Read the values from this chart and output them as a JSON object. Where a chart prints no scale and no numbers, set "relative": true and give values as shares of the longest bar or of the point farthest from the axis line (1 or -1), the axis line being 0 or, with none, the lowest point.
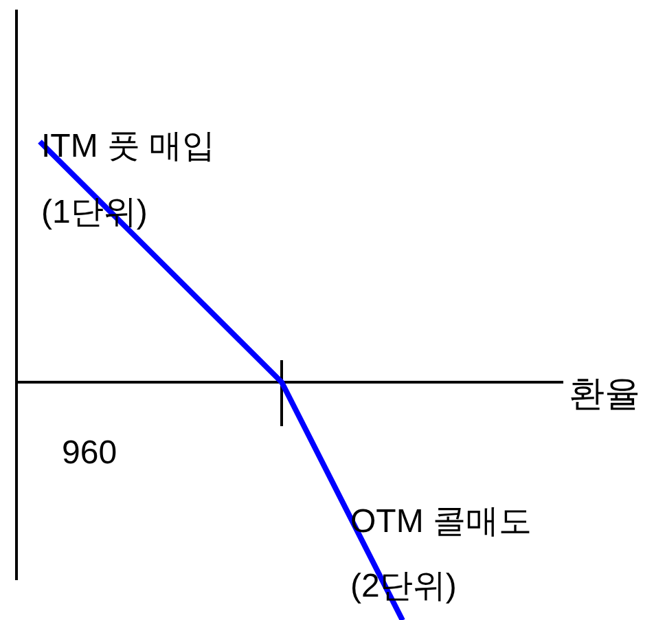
{
  "chart_data": {
    "type": "line",
    "relative": true,
    "xlabel": "환율",
    "categories": [
      null,
      null,
      null,
      null
    ],
    "series": [
      {
        "color": "#0000ff",
        "values": [
          1,
          0.5,
          0,
          -0.99
        ]
      }
    ],
    "annotations": [
      "ITM 풋 매입",
      "(1단위)",
      "960",
      "OTM 콜매도",
      "(2단위)"
    ]
  }
}
